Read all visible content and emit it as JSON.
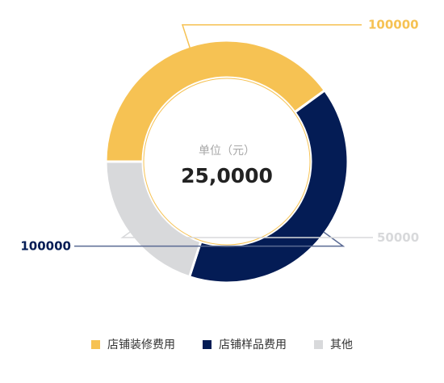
{
  "chart_data": {
    "type": "pie",
    "style": "donut",
    "categories": [
      "店铺装修费用",
      "店铺样品费用",
      "其他"
    ],
    "values": [
      100000,
      100000,
      50000
    ],
    "value_labels": [
      "100000",
      "100000",
      "50000"
    ],
    "colors": [
      "#f6c253",
      "#041c55",
      "#d8d9db"
    ],
    "label_colors": [
      "#f6c253",
      "#041c55",
      "#d8d9db"
    ],
    "center": {
      "unit": "单位（元）",
      "total": "25,0000"
    },
    "legend": {
      "placement": "bottom-center"
    }
  }
}
